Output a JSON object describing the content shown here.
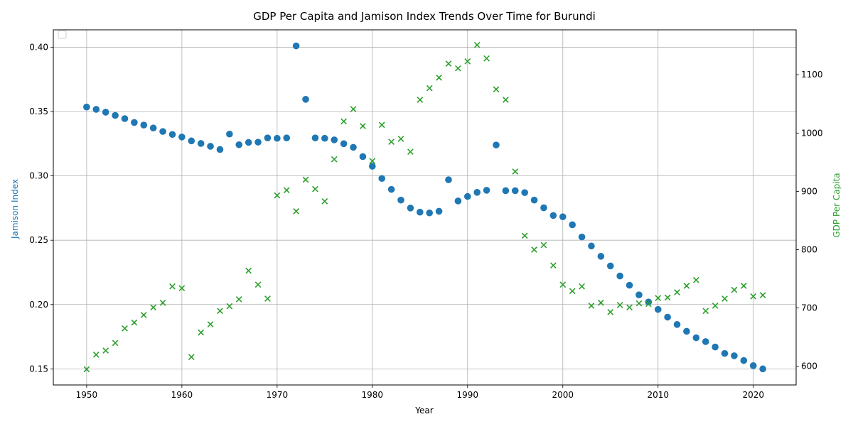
{
  "chart_data": {
    "type": "scatter",
    "title": "GDP Per Capita and Jamison Index Trends Over Time for Burundi",
    "xlabel": "Year",
    "ylabel_left": "Jamison Index",
    "ylabel_right": "GDP Per Capita",
    "xlim": [
      1946.5,
      2024.5
    ],
    "ylim_left": [
      0.1375,
      0.4135
    ],
    "ylim_right": [
      568,
      1177
    ],
    "x_ticks": [
      1950,
      1960,
      1970,
      1980,
      1990,
      2000,
      2010,
      2020
    ],
    "x_tick_labels": [
      "1950",
      "1960",
      "1970",
      "1980",
      "1990",
      "2000",
      "2010",
      "2020"
    ],
    "y_left_ticks": [
      0.15,
      0.2,
      0.25,
      0.3,
      0.35,
      0.4
    ],
    "y_left_tick_labels": [
      "0.15",
      "0.20",
      "0.25",
      "0.30",
      "0.35",
      "0.40"
    ],
    "y_right_ticks": [
      600,
      700,
      800,
      900,
      1000,
      1100
    ],
    "y_right_tick_labels": [
      "600",
      "700",
      "800",
      "900",
      "1000",
      "1100"
    ],
    "grid": true,
    "legend": "top-left",
    "colors": {
      "jamison": "#1f77b4",
      "gdp": "#2ca02c",
      "axis": "#000000",
      "grid": "#b0b0b0"
    },
    "x": [
      1950,
      1951,
      1952,
      1953,
      1954,
      1955,
      1956,
      1957,
      1958,
      1959,
      1960,
      1961,
      1962,
      1963,
      1964,
      1965,
      1966,
      1967,
      1968,
      1969,
      1970,
      1971,
      1972,
      1973,
      1974,
      1975,
      1976,
      1977,
      1978,
      1979,
      1980,
      1981,
      1982,
      1983,
      1984,
      1985,
      1986,
      1987,
      1988,
      1989,
      1990,
      1991,
      1992,
      1993,
      1994,
      1995,
      1996,
      1997,
      1998,
      1999,
      2000,
      2001,
      2002,
      2003,
      2004,
      2005,
      2006,
      2007,
      2008,
      2009,
      2010,
      2011,
      2012,
      2013,
      2014,
      2015,
      2016,
      2017,
      2018,
      2019,
      2020,
      2021
    ],
    "series": [
      {
        "axis": "left",
        "marker": "circle",
        "values": [
          0.3535,
          0.3517,
          0.3495,
          0.347,
          0.3445,
          0.3415,
          0.3395,
          0.3372,
          0.3345,
          0.3322,
          0.3302,
          0.3272,
          0.3252,
          0.323,
          0.3205,
          0.3325,
          0.3242,
          0.326,
          0.3262,
          0.3295,
          0.3292,
          0.3295,
          0.401,
          0.3595,
          0.3295,
          0.3292,
          0.328,
          0.325,
          0.3222,
          0.315,
          0.3075,
          0.298,
          0.2895,
          0.2812,
          0.275,
          0.2718,
          0.2712,
          0.2725,
          0.297,
          0.2805,
          0.284,
          0.2872,
          0.2888,
          0.324,
          0.2885,
          0.2885,
          0.287,
          0.2812,
          0.2752,
          0.2692,
          0.2682,
          0.262,
          0.2525,
          0.2455,
          0.2375,
          0.23,
          0.2222,
          0.215,
          0.2075,
          0.202,
          0.1962,
          0.1902,
          0.1845,
          0.1792,
          0.1742,
          0.1712,
          0.167,
          0.162,
          0.1602,
          0.1565,
          0.1525,
          0.15
        ]
      },
      {
        "axis": "right",
        "marker": "x",
        "values": [
          595,
          620,
          627,
          640,
          665,
          675,
          688,
          701,
          709,
          737,
          734,
          616,
          658,
          672,
          695,
          703,
          715,
          764,
          740,
          716,
          893,
          902,
          866,
          920,
          904,
          883,
          955,
          1020,
          1041,
          1012,
          952,
          1014,
          985,
          990,
          968,
          1057,
          1077,
          1095,
          1119,
          1111,
          1123,
          1151,
          1128,
          1075,
          1057,
          934,
          824,
          800,
          808,
          773,
          740,
          729,
          737,
          704,
          709,
          693,
          705,
          701,
          708,
          707,
          717,
          718,
          727,
          738,
          748,
          695,
          704,
          716,
          731,
          738,
          720,
          722
        ]
      }
    ]
  }
}
